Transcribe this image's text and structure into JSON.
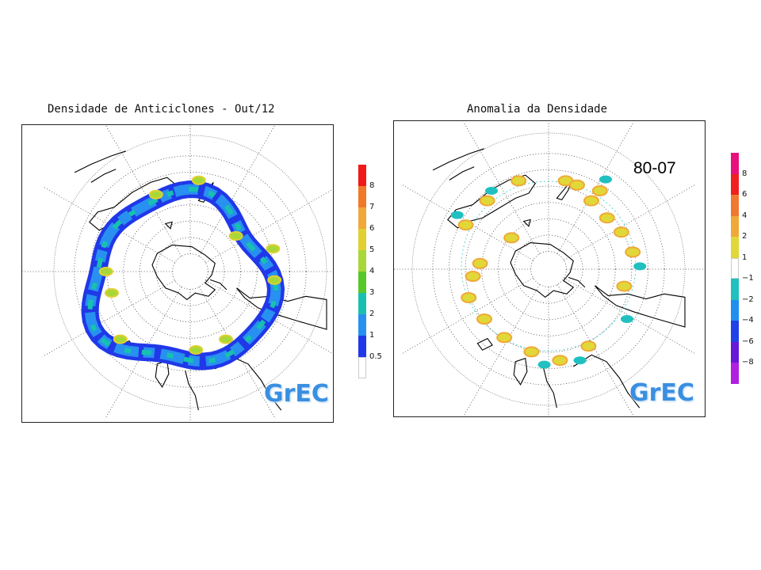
{
  "left_panel": {
    "title": "Densidade de Anticiclones - Out/12",
    "logo": "GrEC",
    "colorbar": {
      "labels": [
        "8",
        "7",
        "6",
        "5",
        "4",
        "3",
        "2",
        "1",
        "0.5"
      ],
      "colors": [
        "#f01818",
        "#f07828",
        "#f0a838",
        "#e0d030",
        "#a8d838",
        "#58c828",
        "#18c0b0",
        "#2890f0",
        "#2038e8",
        "#ffffff"
      ]
    }
  },
  "right_panel": {
    "title": "Anomalia da Densidade",
    "period": "80-07",
    "logo": "GrEC",
    "colorbar": {
      "labels": [
        "8",
        "6",
        "4",
        "2",
        "1",
        "−1",
        "−2",
        "−4",
        "−6",
        "−8"
      ],
      "colors": [
        "#e8107a",
        "#f02020",
        "#f07830",
        "#f0a838",
        "#e0d838",
        "#ffffff",
        "#20c0c0",
        "#2090f0",
        "#2040e8",
        "#6818d8",
        "#b020e0"
      ]
    }
  }
}
